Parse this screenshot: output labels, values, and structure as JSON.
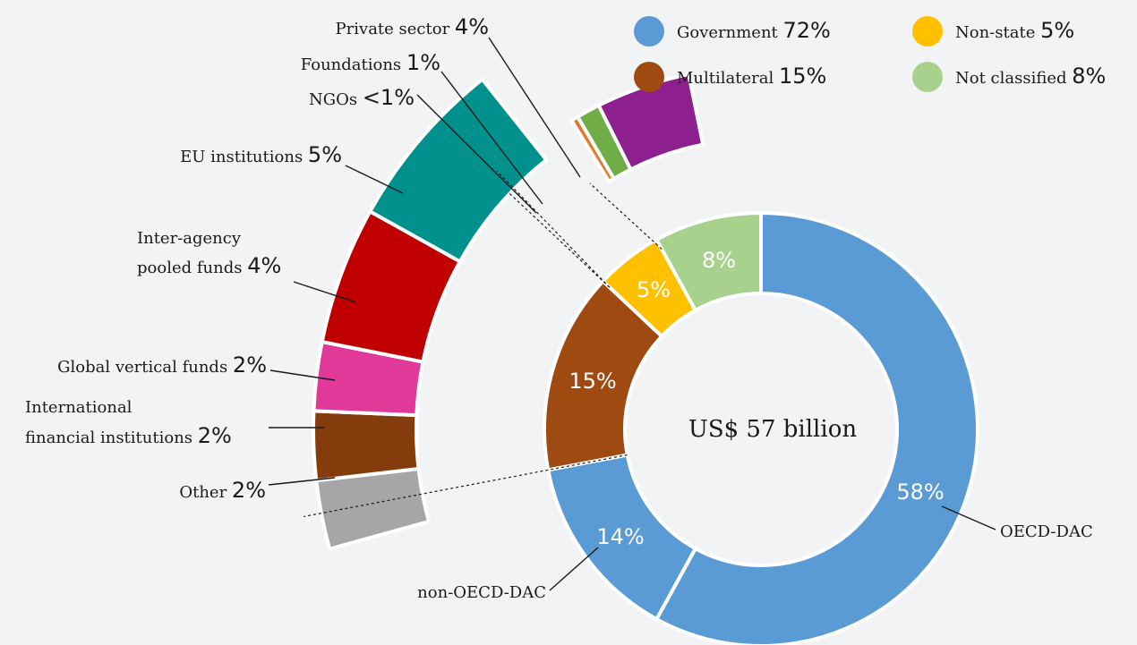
{
  "colors": {
    "government": "#5b9bd5",
    "multilateral": "#9e4a10",
    "non_state": "#ffc000",
    "not_classified": "#a9d18e",
    "eu": "#00918d",
    "pooled": "#c00000",
    "vertical": "#e0399a",
    "ifi": "#843c0c",
    "other": "#a6a6a6",
    "ngos": "#e07a2e",
    "foundations": "#70ad47",
    "private": "#8e1f8e"
  },
  "legend": [
    {
      "name": "Government",
      "value": "72%",
      "color": "#5b9bd5"
    },
    {
      "name": "Multilateral",
      "value": "15%",
      "color": "#9e4a10"
    },
    {
      "name": "Non-state",
      "value": "5%",
      "color": "#ffc000"
    },
    {
      "name": "Not classified",
      "value": "8%",
      "color": "#a9d18e"
    }
  ],
  "chart_data": {
    "type": "pie",
    "title": "",
    "center_label": "US$ 57 billion",
    "inner_ring": [
      {
        "name": "OECD-DAC",
        "label": "58%",
        "value": 58,
        "color": "#5b9bd5"
      },
      {
        "name": "non-OECD-DAC",
        "label": "14%",
        "value": 14,
        "color": "#5b9bd5"
      },
      {
        "name": "",
        "label": "15%",
        "value": 15,
        "color": "#9e4a10"
      },
      {
        "name": "",
        "label": "5%",
        "value": 5,
        "color": "#ffc000"
      },
      {
        "name": "",
        "label": "8%",
        "value": 8,
        "color": "#a9d18e"
      }
    ],
    "outer_multilateral": [
      {
        "name": "Other",
        "label": "2%",
        "value": 2,
        "color": "#a6a6a6"
      },
      {
        "name": "International financial institutions",
        "label": "2%",
        "value": 2,
        "color": "#843c0c"
      },
      {
        "name": "Global vertical funds",
        "label": "2%",
        "value": 2,
        "color": "#e0399a"
      },
      {
        "name": "Inter-agency pooled funds",
        "label": "4%",
        "value": 4,
        "color": "#c00000"
      },
      {
        "name": "EU institutions",
        "label": "5%",
        "value": 5,
        "color": "#00918d"
      }
    ],
    "outer_non_state": [
      {
        "name": "NGOs",
        "label": "<1%",
        "value": 0.3,
        "color": "#e07a2e"
      },
      {
        "name": "Foundations",
        "label": "1%",
        "value": 1,
        "color": "#70ad47"
      },
      {
        "name": "Private sector",
        "label": "4%",
        "value": 4,
        "color": "#8e1f8e"
      }
    ]
  }
}
